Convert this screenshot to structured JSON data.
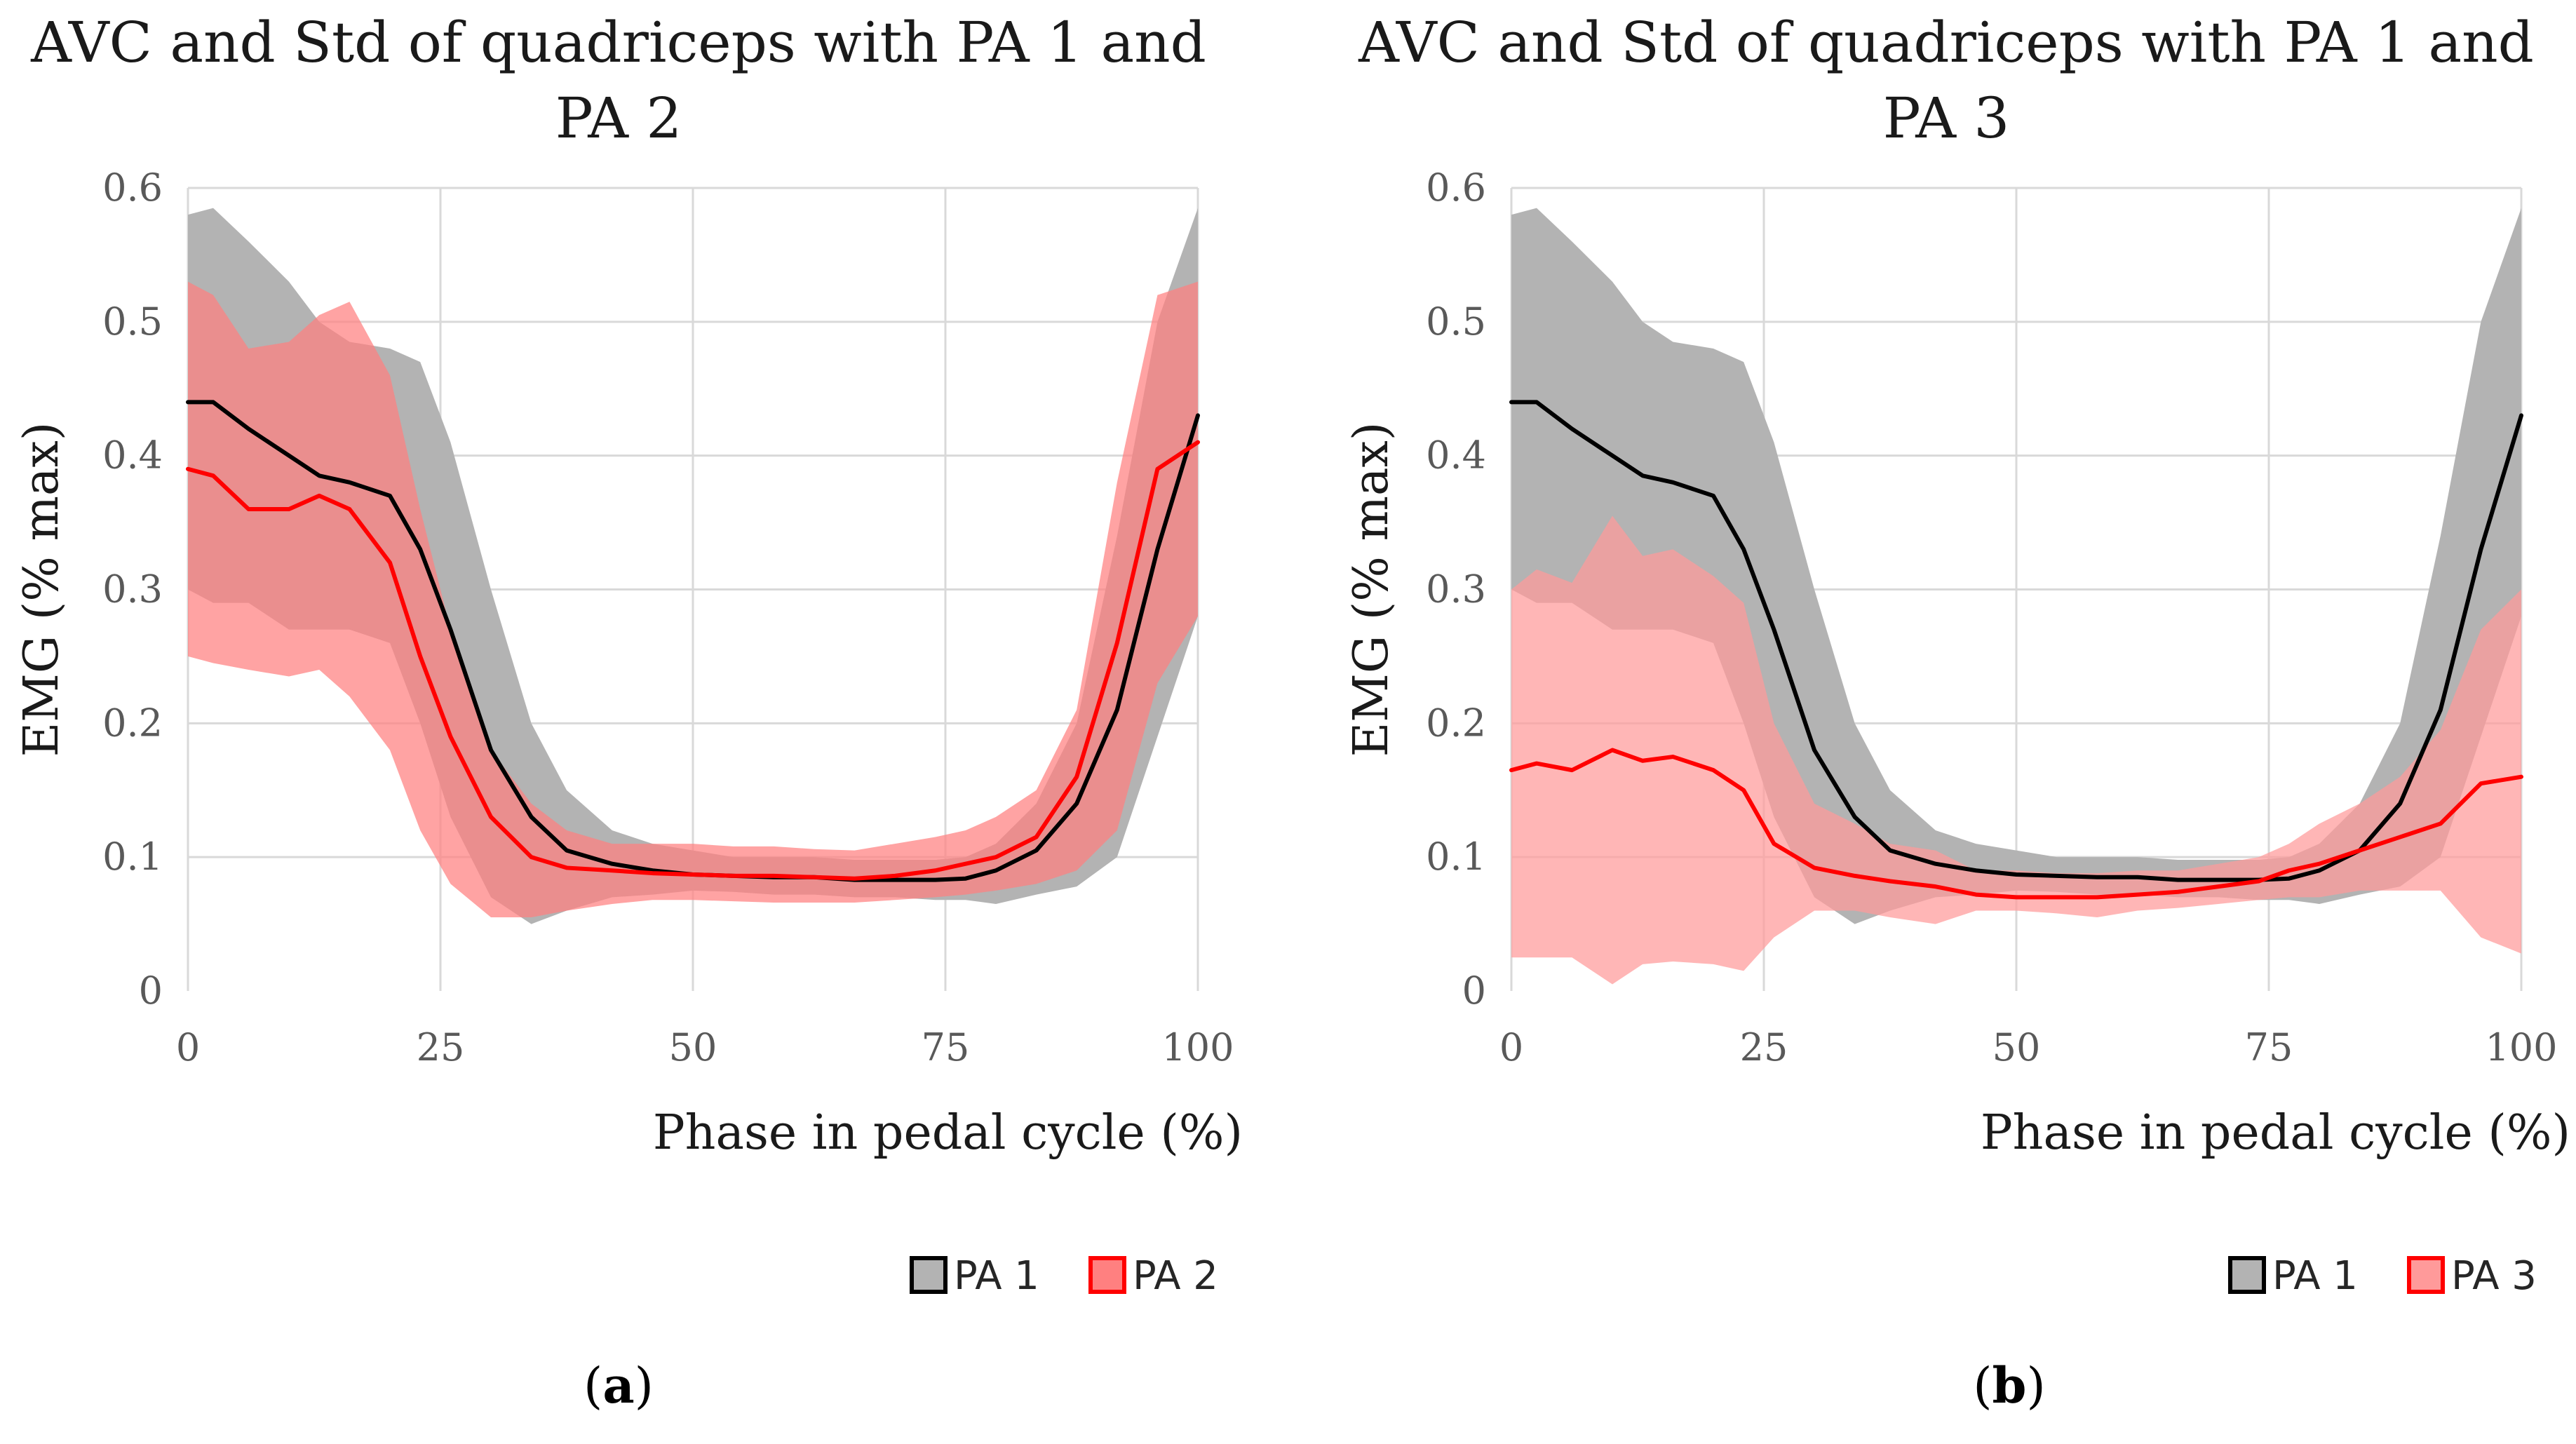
{
  "chart_data": [
    {
      "type": "area",
      "id": "a",
      "title_lines": [
        "AVC and Std of quadriceps with PA 1 and",
        "PA 2"
      ],
      "xlabel": "Phase in pedal cycle (%)",
      "ylabel": "EMG (% max)",
      "xlim": [
        0,
        100
      ],
      "ylim": [
        0,
        0.6
      ],
      "x_ticks": [
        "0",
        "25",
        "50",
        "75",
        "100"
      ],
      "y_ticks": [
        "0",
        "0.1",
        "0.2",
        "0.3",
        "0.4",
        "0.5",
        "0.6"
      ],
      "grid": true,
      "legend_position": "bottom-right",
      "caption_letter": "a",
      "x": [
        0,
        2.5,
        6,
        10,
        13,
        16,
        20,
        23,
        26,
        30,
        34,
        37.5,
        42,
        46,
        50,
        54,
        58,
        62,
        66,
        70,
        74,
        77,
        80,
        84,
        88,
        92,
        96,
        100
      ],
      "series": [
        {
          "name": "PA 1",
          "color": "#000000",
          "band_color": "#b3b3b3",
          "mean": [
            0.44,
            0.44,
            0.42,
            0.4,
            0.385,
            0.38,
            0.37,
            0.33,
            0.27,
            0.18,
            0.13,
            0.105,
            0.095,
            0.09,
            0.087,
            0.086,
            0.085,
            0.085,
            0.083,
            0.083,
            0.083,
            0.084,
            0.09,
            0.105,
            0.14,
            0.21,
            0.33,
            0.43
          ],
          "upper": [
            0.58,
            0.585,
            0.56,
            0.53,
            0.5,
            0.485,
            0.48,
            0.47,
            0.41,
            0.3,
            0.2,
            0.15,
            0.12,
            0.11,
            0.105,
            0.1,
            0.1,
            0.1,
            0.098,
            0.098,
            0.098,
            0.1,
            0.11,
            0.14,
            0.2,
            0.34,
            0.5,
            0.585
          ],
          "lower": [
            0.3,
            0.29,
            0.29,
            0.27,
            0.27,
            0.27,
            0.26,
            0.2,
            0.13,
            0.07,
            0.05,
            0.06,
            0.07,
            0.072,
            0.075,
            0.074,
            0.072,
            0.072,
            0.07,
            0.07,
            0.068,
            0.068,
            0.065,
            0.072,
            0.078,
            0.1,
            0.19,
            0.28
          ]
        },
        {
          "name": "PA 2",
          "color": "#ff0000",
          "band_color": "#ff8080",
          "mean": [
            0.39,
            0.385,
            0.36,
            0.36,
            0.37,
            0.36,
            0.32,
            0.25,
            0.19,
            0.13,
            0.1,
            0.092,
            0.09,
            0.088,
            0.087,
            0.086,
            0.086,
            0.085,
            0.084,
            0.086,
            0.09,
            0.095,
            0.1,
            0.115,
            0.16,
            0.26,
            0.39,
            0.41
          ],
          "upper": [
            0.53,
            0.52,
            0.48,
            0.485,
            0.505,
            0.515,
            0.46,
            0.36,
            0.27,
            0.18,
            0.14,
            0.12,
            0.11,
            0.11,
            0.11,
            0.108,
            0.108,
            0.106,
            0.105,
            0.11,
            0.115,
            0.12,
            0.13,
            0.15,
            0.21,
            0.38,
            0.52,
            0.53
          ],
          "lower": [
            0.25,
            0.245,
            0.24,
            0.235,
            0.24,
            0.22,
            0.18,
            0.12,
            0.08,
            0.055,
            0.055,
            0.06,
            0.065,
            0.068,
            0.068,
            0.067,
            0.066,
            0.066,
            0.066,
            0.068,
            0.07,
            0.072,
            0.075,
            0.08,
            0.09,
            0.12,
            0.23,
            0.28
          ]
        }
      ]
    },
    {
      "type": "area",
      "id": "b",
      "title_lines": [
        "AVC and Std of quadriceps with PA 1 and",
        "PA 3"
      ],
      "xlabel": "Phase in pedal cycle (%)",
      "ylabel": "EMG (% max)",
      "xlim": [
        0,
        100
      ],
      "ylim": [
        0,
        0.6
      ],
      "x_ticks": [
        "0",
        "25",
        "50",
        "75",
        "100"
      ],
      "y_ticks": [
        "0",
        "0.1",
        "0.2",
        "0.3",
        "0.4",
        "0.5",
        "0.6"
      ],
      "grid": true,
      "legend_position": "bottom-right",
      "caption_letter": "b",
      "x": [
        0,
        2.5,
        6,
        10,
        13,
        16,
        20,
        23,
        26,
        30,
        34,
        37.5,
        42,
        46,
        50,
        54,
        58,
        62,
        66,
        70,
        74,
        77,
        80,
        84,
        88,
        92,
        96,
        100
      ],
      "series": [
        {
          "name": "PA 1",
          "color": "#000000",
          "band_color": "#b3b3b3",
          "mean": [
            0.44,
            0.44,
            0.42,
            0.4,
            0.385,
            0.38,
            0.37,
            0.33,
            0.27,
            0.18,
            0.13,
            0.105,
            0.095,
            0.09,
            0.087,
            0.086,
            0.085,
            0.085,
            0.083,
            0.083,
            0.083,
            0.084,
            0.09,
            0.105,
            0.14,
            0.21,
            0.33,
            0.43
          ],
          "upper": [
            0.58,
            0.585,
            0.56,
            0.53,
            0.5,
            0.485,
            0.48,
            0.47,
            0.41,
            0.3,
            0.2,
            0.15,
            0.12,
            0.11,
            0.105,
            0.1,
            0.1,
            0.1,
            0.098,
            0.098,
            0.098,
            0.1,
            0.11,
            0.14,
            0.2,
            0.34,
            0.5,
            0.585
          ],
          "lower": [
            0.3,
            0.29,
            0.29,
            0.27,
            0.27,
            0.27,
            0.26,
            0.2,
            0.13,
            0.07,
            0.05,
            0.06,
            0.07,
            0.072,
            0.075,
            0.074,
            0.072,
            0.072,
            0.07,
            0.07,
            0.068,
            0.068,
            0.065,
            0.072,
            0.078,
            0.1,
            0.19,
            0.28
          ]
        },
        {
          "name": "PA 3",
          "color": "#ff0000",
          "band_color": "#ff9a9a",
          "mean": [
            0.165,
            0.17,
            0.165,
            0.18,
            0.172,
            0.175,
            0.165,
            0.15,
            0.11,
            0.092,
            0.086,
            0.082,
            0.078,
            0.072,
            0.07,
            0.07,
            0.07,
            0.072,
            0.074,
            0.078,
            0.082,
            0.09,
            0.095,
            0.105,
            0.115,
            0.125,
            0.155,
            0.16
          ],
          "upper": [
            0.3,
            0.315,
            0.305,
            0.355,
            0.325,
            0.33,
            0.31,
            0.29,
            0.2,
            0.14,
            0.125,
            0.11,
            0.105,
            0.09,
            0.09,
            0.088,
            0.088,
            0.09,
            0.09,
            0.095,
            0.1,
            0.11,
            0.125,
            0.14,
            0.16,
            0.195,
            0.27,
            0.3
          ],
          "lower": [
            0.025,
            0.025,
            0.025,
            0.005,
            0.02,
            0.022,
            0.02,
            0.015,
            0.04,
            0.06,
            0.06,
            0.055,
            0.05,
            0.06,
            0.06,
            0.058,
            0.055,
            0.06,
            0.062,
            0.065,
            0.068,
            0.07,
            0.07,
            0.075,
            0.075,
            0.075,
            0.04,
            0.028
          ]
        }
      ]
    }
  ]
}
